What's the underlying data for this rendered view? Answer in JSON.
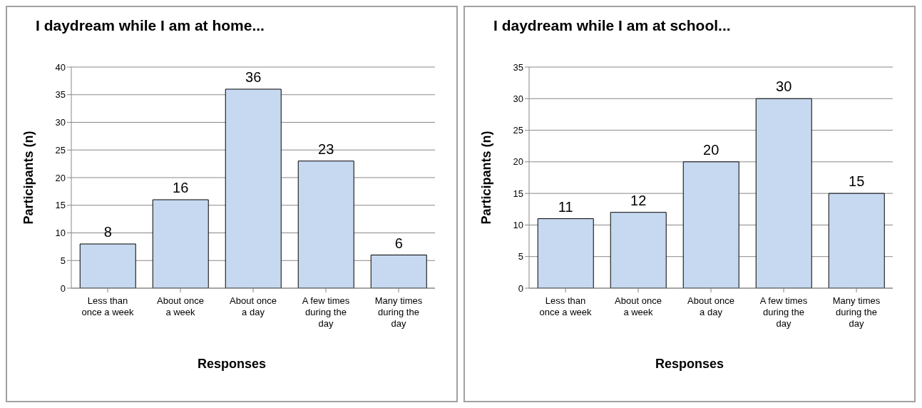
{
  "chart_data": [
    {
      "type": "bar",
      "title": "I daydream while I am at home...",
      "xlabel": "Responses",
      "ylabel": "Participants (n)",
      "categories": [
        "Less than once a week",
        "About once a week",
        "About once a day",
        "A few times during the day",
        "Many times during the day"
      ],
      "values": [
        8,
        16,
        36,
        23,
        6
      ],
      "color": "#c6d9f0",
      "ylim": [
        0,
        40
      ],
      "yticks": [
        0,
        5,
        10,
        15,
        20,
        25,
        30,
        35,
        40
      ],
      "grid": "y",
      "data_labels": true,
      "legend": false
    },
    {
      "type": "bar",
      "title": "I daydream while I am at school...",
      "xlabel": "Responses",
      "ylabel": "Participants (n)",
      "categories": [
        "Less than once a week",
        "About once a week",
        "About once a day",
        "A few times during the day",
        "Many times during the day"
      ],
      "values": [
        11,
        12,
        20,
        30,
        15
      ],
      "color": "#c6d9f0",
      "ylim": [
        0,
        35
      ],
      "yticks": [
        0,
        5,
        10,
        15,
        20,
        25,
        30,
        35
      ],
      "grid": "y",
      "data_labels": true,
      "legend": false
    }
  ]
}
